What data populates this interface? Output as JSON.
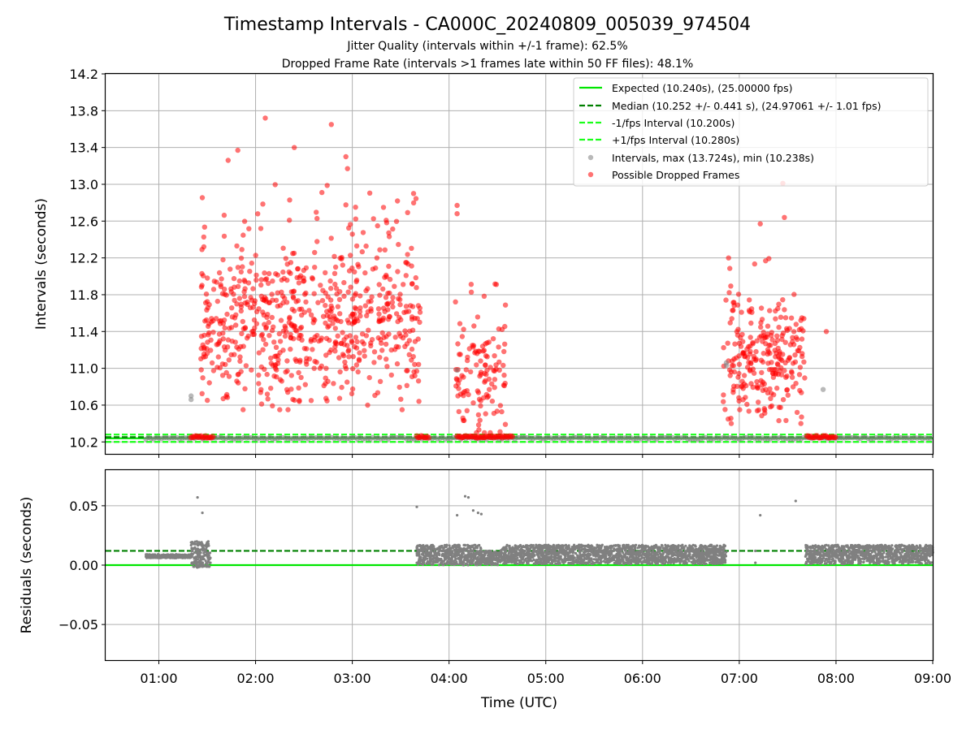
{
  "colors": {
    "expected": "#00e600",
    "median": "#008000",
    "bounds": "#19ff19",
    "intervals": "#808080",
    "dropped": "#ff0000",
    "grid": "#b0b0b0"
  },
  "chart_data": {
    "title": "Timestamp Intervals - CA000C_20240809_005039_974504",
    "subtitle_1": "Jitter Quality (intervals within +/-1 frame): 62.5%",
    "subtitle_2": "Dropped Frame Rate (intervals >1 frames late within 50 FF files): 48.1%",
    "xlabel": "Time (UTC)",
    "x_range": [
      "00:27",
      "09:00"
    ],
    "x_ticks": [
      "01:00",
      "02:00",
      "03:00",
      "04:00",
      "05:00",
      "06:00",
      "07:00",
      "08:00",
      "09:00"
    ],
    "grid": true,
    "legend_placement": "top-right",
    "panels": [
      {
        "name": "intervals",
        "ylabel": "Intervals (seconds)",
        "ylim": [
          10.07,
          14.2
        ],
        "y_ticks": [
          "10.2",
          "10.6",
          "11.0",
          "11.4",
          "11.8",
          "12.2",
          "12.6",
          "13.0",
          "13.4",
          "13.8",
          "14.2"
        ],
        "hlines": [
          {
            "id": "expected",
            "y": 10.24,
            "style": "solid",
            "legend": "Expected (10.240s), (25.00000 fps)"
          },
          {
            "id": "median",
            "y": 10.252,
            "style": "dashed",
            "legend": "Median (10.252 +/- 0.441 s), (24.97061 +/- 1.01 fps)"
          },
          {
            "id": "minus1",
            "y": 10.2,
            "style": "dashed",
            "legend": "-1/fps Interval (10.200s)"
          },
          {
            "id": "plus1",
            "y": 10.28,
            "style": "dashed",
            "legend": "+1/fps Interval (10.280s)"
          }
        ],
        "series": [
          {
            "id": "intervals",
            "name": "Intervals, max (13.724s), min (10.238s)",
            "type": "scatter"
          },
          {
            "id": "dropped",
            "name": "Possible Dropped Frames",
            "type": "scatter"
          }
        ],
        "outliers": [
          {
            "t": "01:20",
            "y": 10.7,
            "s": "intervals"
          },
          {
            "t": "01:20",
            "y": 10.66,
            "s": "intervals"
          },
          {
            "t": "04:05",
            "y": 10.98,
            "s": "intervals"
          },
          {
            "t": "06:52",
            "y": 11.06,
            "s": "intervals"
          },
          {
            "t": "06:52",
            "y": 11.03,
            "s": "intervals"
          },
          {
            "t": "07:52",
            "y": 10.77,
            "s": "intervals"
          },
          {
            "t": "02:06",
            "y": 13.72,
            "s": "dropped"
          },
          {
            "t": "02:47",
            "y": 13.65,
            "s": "dropped"
          },
          {
            "t": "02:24",
            "y": 13.4,
            "s": "dropped"
          },
          {
            "t": "01:49",
            "y": 13.37,
            "s": "dropped"
          },
          {
            "t": "02:56",
            "y": 13.3,
            "s": "dropped"
          },
          {
            "t": "01:43",
            "y": 13.26,
            "s": "dropped"
          },
          {
            "t": "02:57",
            "y": 13.17,
            "s": "dropped"
          },
          {
            "t": "07:27",
            "y": 13.01,
            "s": "dropped"
          },
          {
            "t": "04:05",
            "y": 12.77,
            "s": "dropped"
          },
          {
            "t": "04:05",
            "y": 12.68,
            "s": "dropped"
          },
          {
            "t": "07:28",
            "y": 12.64,
            "s": "dropped"
          },
          {
            "t": "07:13",
            "y": 12.57,
            "s": "dropped"
          },
          {
            "t": "03:38",
            "y": 12.9,
            "s": "dropped"
          },
          {
            "t": "07:54",
            "y": 11.4,
            "s": "dropped"
          }
        ],
        "dropped_clusters": [
          {
            "t0": "01:26",
            "t1": "03:42",
            "y0": 10.55,
            "y1": 13.0,
            "mode": 11.5,
            "count": 700
          },
          {
            "t0": "04:04",
            "t1": "04:35",
            "y0": 10.3,
            "y1": 12.05,
            "mode": 10.9,
            "count": 120
          },
          {
            "t0": "06:50",
            "t1": "07:41",
            "y0": 10.4,
            "y1": 12.2,
            "mode": 11.1,
            "count": 260
          }
        ],
        "baseline_dropped_ranges": [
          [
            "01:20",
            "01:34"
          ],
          [
            "03:40",
            "03:48"
          ],
          [
            "04:05",
            "04:40"
          ],
          [
            "07:42",
            "07:56"
          ],
          [
            "07:56",
            "08:00"
          ]
        ]
      },
      {
        "name": "residuals",
        "ylabel": "Residuals (seconds)",
        "ylim": [
          -0.08,
          0.08
        ],
        "y_ticks": [
          "−0.05",
          "0.00",
          "0.05"
        ],
        "hlines": [
          {
            "id": "expected",
            "y": 0.0,
            "style": "solid"
          },
          {
            "id": "median",
            "y": 0.012,
            "style": "dashed"
          }
        ],
        "segments": [
          {
            "t0": "00:52",
            "t1": "01:20",
            "y0": 0.006,
            "y1": 0.009
          },
          {
            "t0": "01:20",
            "t1": "01:32",
            "y0": -0.002,
            "y1": 0.02
          },
          {
            "t0": "03:40",
            "t1": "04:20",
            "y0": 0.0,
            "y1": 0.017
          },
          {
            "t0": "04:20",
            "t1": "04:32",
            "y0": 0.0,
            "y1": 0.012
          },
          {
            "t0": "04:32",
            "t1": "06:52",
            "y0": 0.001,
            "y1": 0.017
          },
          {
            "t0": "07:41",
            "t1": "09:00",
            "y0": 0.001,
            "y1": 0.017
          }
        ],
        "outliers": [
          {
            "t": "01:24",
            "y": 0.057
          },
          {
            "t": "01:27",
            "y": 0.044
          },
          {
            "t": "03:40",
            "y": 0.049
          },
          {
            "t": "04:10",
            "y": 0.058
          },
          {
            "t": "04:12",
            "y": 0.057
          },
          {
            "t": "04:05",
            "y": 0.042
          },
          {
            "t": "04:15",
            "y": 0.046
          },
          {
            "t": "04:18",
            "y": 0.044
          },
          {
            "t": "04:20",
            "y": 0.043
          },
          {
            "t": "07:13",
            "y": 0.042
          },
          {
            "t": "07:35",
            "y": 0.054
          },
          {
            "t": "07:10",
            "y": 0.012
          },
          {
            "t": "07:10",
            "y": 0.002
          },
          {
            "t": "01:32",
            "y": 0.002
          },
          {
            "t": "01:31",
            "y": 0.006
          }
        ]
      }
    ]
  }
}
